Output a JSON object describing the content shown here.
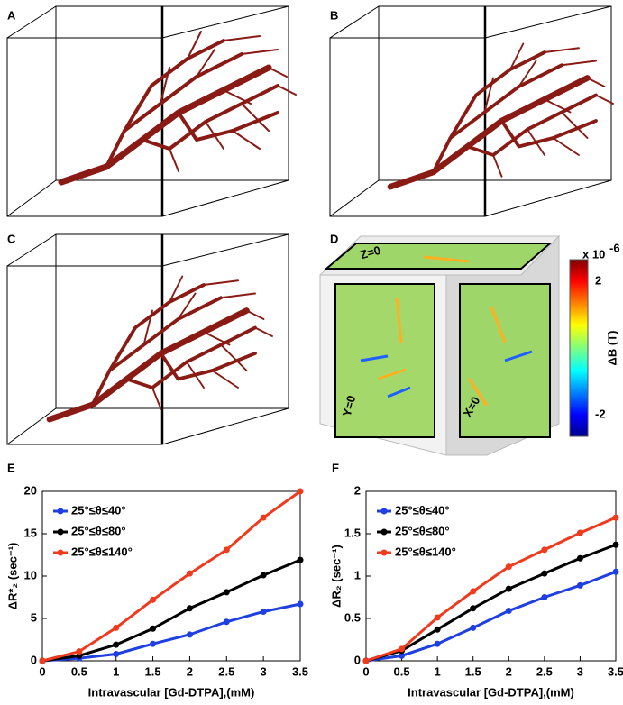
{
  "panels": {
    "a": "A",
    "b": "B",
    "c": "C",
    "d": "D",
    "e": "E",
    "f": "F"
  },
  "field_map": {
    "faces": {
      "z": "Z=0",
      "y": "Y=0",
      "x": "X=0"
    },
    "colorbar": {
      "multiplier": "x 10",
      "exponent": "-6",
      "top_tick": "2",
      "bottom_tick": "-2",
      "label": "ΔB (T)"
    }
  },
  "chart_data": [
    {
      "type": "line",
      "ylabel": "ΔR*₂ (sec⁻¹)",
      "xlabel": "Intravascular [Gd-DTPA],(mM)",
      "x": [
        0,
        0.5,
        1,
        1.5,
        2,
        2.5,
        3,
        3.5
      ],
      "xlim": [
        0,
        3.5
      ],
      "xticks": [
        0,
        0.5,
        1,
        1.5,
        2,
        2.5,
        3,
        3.5
      ],
      "ylim": [
        0,
        20
      ],
      "yticks": [
        0,
        5,
        10,
        15,
        20
      ],
      "legend": "upper-left",
      "series": [
        {
          "name": "25°≤θ≤40°",
          "color": "#1f3fe0",
          "values": [
            0,
            0.3,
            0.8,
            2.0,
            3.1,
            4.6,
            5.8,
            6.7
          ]
        },
        {
          "name": "25°≤θ≤80°",
          "color": "#000000",
          "values": [
            0,
            0.6,
            1.9,
            3.8,
            6.2,
            8.1,
            10.1,
            11.9
          ]
        },
        {
          "name": "25°≤θ≤140°",
          "color": "#f03a1e",
          "values": [
            0,
            1.1,
            3.9,
            7.2,
            10.3,
            13.1,
            16.9,
            20.0
          ]
        }
      ]
    },
    {
      "type": "line",
      "ylabel": "ΔR₂ (sec⁻¹)",
      "xlabel": "Intravascular [Gd-DTPA],(mM)",
      "x": [
        0,
        0.5,
        1,
        1.5,
        2,
        2.5,
        3,
        3.5
      ],
      "xlim": [
        0,
        3.5
      ],
      "xticks": [
        0,
        0.5,
        1,
        1.5,
        2,
        2.5,
        3,
        3.5
      ],
      "ylim": [
        0,
        2
      ],
      "yticks": [
        0,
        0.5,
        1,
        1.5,
        2
      ],
      "legend": "upper-left",
      "series": [
        {
          "name": "25°≤θ≤40°",
          "color": "#1f3fe0",
          "values": [
            0,
            0.06,
            0.2,
            0.39,
            0.59,
            0.75,
            0.89,
            1.05
          ]
        },
        {
          "name": "25°≤θ≤80°",
          "color": "#000000",
          "values": [
            0,
            0.12,
            0.37,
            0.62,
            0.85,
            1.03,
            1.21,
            1.37
          ]
        },
        {
          "name": "25°≤θ≤140°",
          "color": "#f03a1e",
          "values": [
            0,
            0.14,
            0.51,
            0.82,
            1.11,
            1.31,
            1.51,
            1.69
          ]
        }
      ]
    }
  ]
}
